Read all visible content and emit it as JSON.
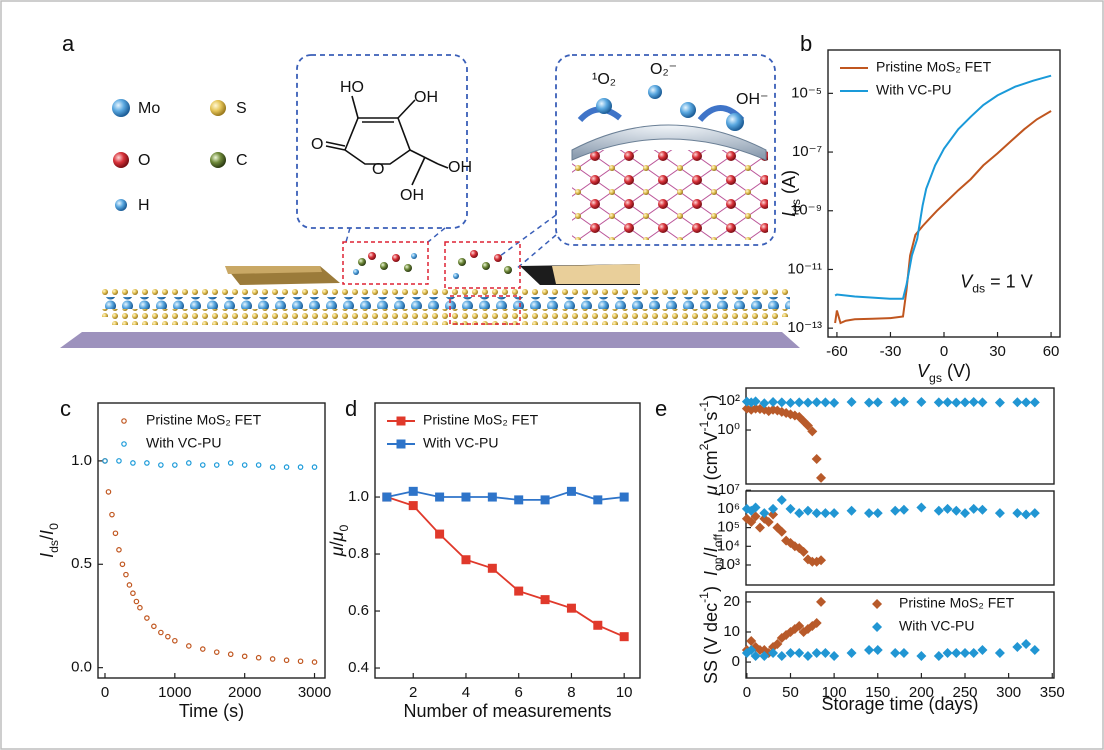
{
  "panel_a": {
    "label": "a",
    "legend": [
      "Mo",
      "S",
      "O",
      "C",
      "H"
    ],
    "molecule": [
      "HO",
      "OH",
      "O",
      "O",
      "OH",
      "OH"
    ],
    "species": [
      "¹O₂",
      "O₂⁻",
      "OH⁻"
    ]
  },
  "chart_data": [
    {
      "type": "line",
      "panel_label": "b",
      "x_label": [
        {
          "text": "V",
          "style": "italic"
        },
        {
          "text": "gs",
          "style": "sub"
        },
        {
          "text": " (V)"
        }
      ],
      "y_label": [
        {
          "text": "I",
          "style": "italic"
        },
        {
          "text": "ds",
          "style": "sub"
        },
        {
          "text": " (A)"
        }
      ],
      "annotation": [
        {
          "text": "V",
          "style": "italic"
        },
        {
          "text": "ds",
          "style": "sub"
        },
        {
          "text": " = 1 V"
        }
      ],
      "log_y": true,
      "xlim": [
        -65,
        65
      ],
      "xticks": [
        -60,
        -30,
        0,
        30,
        60
      ],
      "ylim": [
        5e-14,
        0.0003
      ],
      "yticks": [
        {
          "value": 1e-13,
          "label": "10⁻¹³"
        },
        {
          "value": 1e-11,
          "label": "10⁻¹¹"
        },
        {
          "value": 1e-09,
          "label": "10⁻⁹"
        },
        {
          "value": 1e-07,
          "label": "10⁻⁷"
        },
        {
          "value": 1e-05,
          "label": "10⁻⁵"
        }
      ],
      "legend": "upper left",
      "series": [
        {
          "name": "Pristine MoS₂ FET",
          "color": "#c0561f",
          "line": true,
          "marker": null,
          "x": [
            -61,
            -60,
            -58,
            -55,
            -50,
            -40,
            -30,
            -23,
            -21,
            -19,
            -16,
            -12,
            -8,
            -4,
            0,
            8,
            15,
            22,
            30,
            38,
            45,
            52,
            60
          ],
          "values": [
            1.5e-13,
            4e-13,
            1.5e-13,
            1.8e-13,
            2e-13,
            2.1e-13,
            2.2e-13,
            2.5e-13,
            2e-12,
            3e-11,
            1.5e-10,
            3e-10,
            5.5e-10,
            1e-09,
            1.7e-09,
            5e-09,
            1.2e-08,
            3.5e-08,
            9e-08,
            2.5e-07,
            6e-07,
            1.3e-06,
            2.5e-06
          ]
        },
        {
          "name": "With VC-PU",
          "color": "#1a9ad9",
          "line": true,
          "marker": null,
          "x": [
            -61,
            -60,
            -55,
            -50,
            -40,
            -30,
            -23,
            -21,
            -18,
            -15,
            -12,
            -10,
            -5,
            0,
            8,
            15,
            22,
            30,
            40,
            50,
            60
          ],
          "values": [
            1.3e-12,
            1.4e-12,
            1.3e-12,
            1.2e-12,
            1.1e-12,
            1e-12,
            1e-12,
            3e-12,
            3e-11,
            1.1e-10,
            1.5e-09,
            5.6e-09,
            3.5e-08,
            1.3e-07,
            6e-07,
            1.6e-06,
            4e-06,
            8.5e-06,
            1.7e-05,
            2.7e-05,
            4e-05
          ]
        }
      ]
    },
    {
      "type": "line",
      "panel_label": "c",
      "x_label": [
        {
          "text": "Time (s)"
        }
      ],
      "y_label": [
        {
          "text": "I",
          "style": "italic"
        },
        {
          "text": "ds",
          "style": "sub"
        },
        {
          "text": "/"
        },
        {
          "text": "I",
          "style": "italic"
        },
        {
          "text": "0",
          "style": "sub"
        }
      ],
      "xlim": [
        -100,
        3150
      ],
      "xticks": [
        0,
        1000,
        2000,
        3000
      ],
      "ylim": [
        -0.05,
        1.28
      ],
      "yticks": [
        {
          "value": 0,
          "label": "0.0"
        },
        0.5,
        {
          "value": 1,
          "label": "1.0"
        }
      ],
      "legend": "upper left",
      "series": [
        {
          "name": "Pristine MoS₂ FET",
          "color": "#c0561f",
          "line": false,
          "marker": "circle",
          "x": [
            0,
            50,
            100,
            150,
            200,
            250,
            300,
            350,
            400,
            450,
            500,
            600,
            700,
            800,
            900,
            1000,
            1200,
            1400,
            1600,
            1800,
            2000,
            2200,
            2400,
            2600,
            2800,
            3000
          ],
          "values": [
            1.0,
            0.85,
            0.74,
            0.65,
            0.57,
            0.5,
            0.45,
            0.4,
            0.36,
            0.32,
            0.29,
            0.24,
            0.2,
            0.17,
            0.15,
            0.13,
            0.105,
            0.09,
            0.075,
            0.065,
            0.055,
            0.048,
            0.042,
            0.036,
            0.031,
            0.027
          ]
        },
        {
          "name": "With VC-PU",
          "color": "#1a9ad9",
          "line": false,
          "marker": "circle",
          "x": [
            0,
            200,
            400,
            600,
            800,
            1000,
            1200,
            1400,
            1600,
            1800,
            2000,
            2200,
            2400,
            2600,
            2800,
            3000
          ],
          "values": [
            1.0,
            1.0,
            0.99,
            0.99,
            0.98,
            0.98,
            0.99,
            0.98,
            0.98,
            0.99,
            0.98,
            0.98,
            0.97,
            0.97,
            0.97,
            0.97
          ]
        }
      ]
    },
    {
      "type": "line",
      "panel_label": "d",
      "x_label": [
        {
          "text": "Number of measurements"
        }
      ],
      "y_label": [
        {
          "text": "μ",
          "style": "italic"
        },
        {
          "text": "/"
        },
        {
          "text": "μ",
          "style": "italic"
        },
        {
          "text": "0",
          "style": "sub"
        }
      ],
      "xlim": [
        0.55,
        10.6
      ],
      "xticks": [
        2,
        4,
        6,
        8,
        10
      ],
      "ylim": [
        0.365,
        1.33
      ],
      "yticks": [
        0.4,
        0.6,
        0.8,
        {
          "value": 1,
          "label": "1.0"
        }
      ],
      "legend": "upper left",
      "series": [
        {
          "name": "Pristine MoS₂ FET",
          "color": "#e0392b",
          "line": true,
          "marker": "square",
          "x": [
            1,
            2,
            3,
            4,
            5,
            6,
            7,
            8,
            9,
            10
          ],
          "values": [
            1.0,
            0.97,
            0.87,
            0.78,
            0.75,
            0.67,
            0.64,
            0.61,
            0.55,
            0.51
          ]
        },
        {
          "name": "With VC-PU",
          "color": "#2e74c9",
          "line": true,
          "marker": "square",
          "x": [
            1,
            2,
            3,
            4,
            5,
            6,
            7,
            8,
            9,
            10
          ],
          "values": [
            1.0,
            1.02,
            1.0,
            1.0,
            1.0,
            0.99,
            0.99,
            1.02,
            0.99,
            1.0
          ]
        }
      ]
    },
    {
      "type": "scatter",
      "panel_label": "e",
      "y_label": [
        {
          "text": "μ",
          "style": "italic"
        },
        {
          "text": " (cm"
        },
        {
          "text": "2",
          "style": "sup"
        },
        {
          "text": "V"
        },
        {
          "text": "-1",
          "style": "sup"
        },
        {
          "text": "s"
        },
        {
          "text": "-1",
          "style": "sup"
        },
        {
          "text": ")"
        }
      ],
      "log_y": true,
      "xlim": [
        -1,
        352
      ],
      "ylim": [
        0.00019,
        790
      ],
      "yticks": [
        {
          "value": 1,
          "label": "10⁰"
        },
        {
          "value": 100,
          "label": "10²"
        }
      ],
      "series": [
        {
          "color": "#b85a2a",
          "marker": "diamond",
          "x": [
            0,
            5,
            10,
            15,
            20,
            25,
            30,
            35,
            40,
            45,
            50,
            55,
            60,
            65,
            70,
            75,
            80,
            85
          ],
          "values": [
            30,
            25,
            30,
            28,
            25,
            20,
            25,
            22,
            18,
            15,
            12,
            10,
            8,
            4,
            2,
            0.8,
            0.01,
            0.0005
          ]
        },
        {
          "color": "#2196d3",
          "marker": "diamond",
          "x": [
            0,
            5,
            10,
            20,
            30,
            40,
            50,
            60,
            70,
            80,
            90,
            100,
            120,
            140,
            150,
            170,
            180,
            200,
            220,
            230,
            240,
            250,
            260,
            270,
            290,
            310,
            320,
            330
          ],
          "values": [
            90,
            80,
            95,
            70,
            85,
            80,
            75,
            80,
            78,
            82,
            80,
            75,
            85,
            78,
            80,
            82,
            90,
            85,
            80,
            82,
            78,
            80,
            85,
            80,
            78,
            82,
            80,
            80
          ]
        }
      ]
    },
    {
      "type": "scatter",
      "y_label": [
        {
          "text": "I",
          "style": "italic"
        },
        {
          "text": "on",
          "style": "sub"
        },
        {
          "text": "/"
        },
        {
          "text": "I",
          "style": "italic"
        },
        {
          "text": "off",
          "style": "sub"
        }
      ],
      "log_y": true,
      "xlim": [
        -1,
        352
      ],
      "ylim": [
        85,
        9100000.0
      ],
      "yticks": [
        {
          "value": 1000,
          "label": "10³"
        },
        {
          "value": 10000,
          "label": "10⁴"
        },
        {
          "value": 100000,
          "label": "10⁵"
        },
        {
          "value": 1000000,
          "label": "10⁶"
        },
        {
          "value": 10000000,
          "label": "10⁷"
        }
      ],
      "series": [
        {
          "color": "#b85a2a",
          "marker": "diamond",
          "x": [
            0,
            5,
            10,
            15,
            20,
            25,
            30,
            35,
            40,
            45,
            50,
            55,
            60,
            65,
            70,
            75,
            80,
            85
          ],
          "values": [
            300000,
            200000,
            400000,
            100000,
            300000,
            200000,
            500000,
            100000,
            60000,
            20000,
            15000,
            10000,
            8000,
            5000,
            2000,
            1500,
            1500,
            1800
          ]
        },
        {
          "color": "#2196d3",
          "marker": "diamond",
          "x": [
            0,
            5,
            10,
            20,
            30,
            40,
            50,
            60,
            70,
            80,
            90,
            100,
            120,
            140,
            150,
            170,
            180,
            200,
            220,
            230,
            240,
            250,
            260,
            270,
            290,
            310,
            320,
            330
          ],
          "values": [
            1000000,
            800000,
            1200000,
            600000,
            1000000,
            3000000,
            1000000,
            600000,
            800000,
            600000,
            600000,
            600000,
            800000,
            600000,
            600000,
            800000,
            900000,
            1200000,
            800000,
            1000000,
            800000,
            600000,
            1000000,
            900000,
            600000,
            600000,
            500000,
            600000
          ]
        }
      ]
    },
    {
      "type": "scatter",
      "x_label": [
        {
          "text": "Storage time (days)"
        }
      ],
      "y_label": [
        {
          "text": "SS (V dec"
        },
        {
          "text": "-1",
          "style": "sup"
        },
        {
          "text": ")"
        }
      ],
      "xlim": [
        -1,
        352
      ],
      "xticks": [
        0,
        50,
        100,
        150,
        200,
        250,
        300,
        350
      ],
      "ylim": [
        -5.3,
        23.3
      ],
      "yticks": [
        0,
        10,
        20
      ],
      "legend": "upper center",
      "series": [
        {
          "name": "Pristine MoS₂ FET",
          "color": "#b85a2a",
          "marker": "diamond",
          "x": [
            0,
            5,
            10,
            15,
            20,
            25,
            30,
            35,
            40,
            45,
            50,
            55,
            60,
            65,
            70,
            75,
            80,
            85
          ],
          "values": [
            4,
            7,
            5,
            4,
            4,
            3,
            5,
            6,
            8,
            9,
            10,
            11,
            12,
            10,
            11,
            12,
            13,
            20
          ]
        },
        {
          "name": "With VC-PU",
          "color": "#2196d3",
          "marker": "diamond",
          "x": [
            0,
            5,
            10,
            20,
            30,
            40,
            50,
            60,
            70,
            80,
            90,
            100,
            120,
            140,
            150,
            170,
            180,
            200,
            220,
            230,
            240,
            250,
            260,
            270,
            290,
            310,
            320,
            330
          ],
          "values": [
            3,
            4,
            2,
            2,
            3,
            2,
            3,
            3,
            2,
            3,
            3,
            2,
            3,
            4,
            4,
            3,
            3,
            2,
            2,
            3,
            3,
            3,
            3,
            4,
            3,
            5,
            6,
            4
          ]
        }
      ]
    }
  ]
}
